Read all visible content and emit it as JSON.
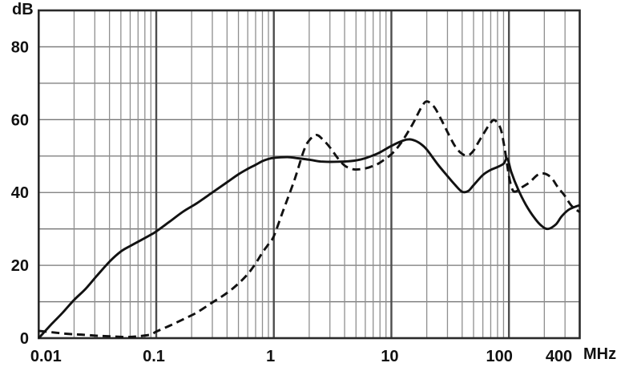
{
  "chart_data": {
    "type": "line",
    "title": "",
    "x_axis": {
      "scale": "log",
      "min": 0.01,
      "max": 400,
      "unit_label": "MHz",
      "tick_labels": [
        "0.01",
        "0.1",
        "1",
        "10",
        "100",
        "400"
      ],
      "tick_values": [
        0.01,
        0.1,
        1,
        10,
        100,
        400
      ]
    },
    "y_axis": {
      "scale": "linear",
      "min": 0,
      "max": 90,
      "unit_label": "dB",
      "tick_labels": [
        "80",
        "60",
        "40",
        "20",
        "0"
      ],
      "tick_values": [
        80,
        60,
        40,
        20,
        0
      ],
      "gridline_step": 10
    },
    "grid": {
      "horizontal_step": 10,
      "log_minor_verticals": true
    },
    "legend": "none",
    "series": [
      {
        "name": "solid",
        "style": "solid",
        "points": [
          [
            0.01,
            0
          ],
          [
            0.013,
            4
          ],
          [
            0.016,
            7
          ],
          [
            0.02,
            10.5
          ],
          [
            0.025,
            13.5
          ],
          [
            0.031,
            17
          ],
          [
            0.04,
            21
          ],
          [
            0.05,
            23.8
          ],
          [
            0.06,
            25.3
          ],
          [
            0.075,
            27
          ],
          [
            0.09,
            28.4
          ],
          [
            0.1,
            29.3
          ],
          [
            0.13,
            32
          ],
          [
            0.17,
            34.8
          ],
          [
            0.22,
            37
          ],
          [
            0.3,
            40
          ],
          [
            0.4,
            42.8
          ],
          [
            0.5,
            45
          ],
          [
            0.6,
            46.5
          ],
          [
            0.7,
            47.6
          ],
          [
            0.8,
            48.6
          ],
          [
            0.9,
            49.2
          ],
          [
            1,
            49.5
          ],
          [
            1.3,
            49.7
          ],
          [
            1.6,
            49.4
          ],
          [
            2,
            49
          ],
          [
            2.5,
            48.5
          ],
          [
            3,
            48.4
          ],
          [
            4,
            48.5
          ],
          [
            5,
            48.8
          ],
          [
            6,
            49.4
          ],
          [
            7,
            50.2
          ],
          [
            8,
            51
          ],
          [
            10,
            52.8
          ],
          [
            12,
            54
          ],
          [
            14,
            54.6
          ],
          [
            16,
            54.2
          ],
          [
            18,
            53.2
          ],
          [
            20,
            51.8
          ],
          [
            25,
            47.6
          ],
          [
            30,
            44.5
          ],
          [
            35,
            42
          ],
          [
            40,
            40.2
          ],
          [
            45,
            40.4
          ],
          [
            50,
            42
          ],
          [
            60,
            44.8
          ],
          [
            70,
            46.2
          ],
          [
            80,
            47
          ],
          [
            90,
            47.9
          ],
          [
            97,
            49.3
          ],
          [
            105,
            45.5
          ],
          [
            120,
            40.8
          ],
          [
            140,
            36.5
          ],
          [
            165,
            33
          ],
          [
            190,
            30.8
          ],
          [
            215,
            30
          ],
          [
            250,
            31.2
          ],
          [
            280,
            33.4
          ],
          [
            320,
            35.2
          ],
          [
            360,
            36
          ],
          [
            400,
            36.5
          ]
        ]
      },
      {
        "name": "dashed",
        "style": "dashed",
        "points": [
          [
            0.01,
            2
          ],
          [
            0.013,
            1.6
          ],
          [
            0.017,
            1.2
          ],
          [
            0.022,
            1
          ],
          [
            0.03,
            0.7
          ],
          [
            0.04,
            0.5
          ],
          [
            0.055,
            0.3
          ],
          [
            0.07,
            0.5
          ],
          [
            0.09,
            1
          ],
          [
            0.1,
            1.8
          ],
          [
            0.13,
            3.4
          ],
          [
            0.17,
            5.2
          ],
          [
            0.22,
            7
          ],
          [
            0.3,
            9.8
          ],
          [
            0.4,
            12.4
          ],
          [
            0.5,
            15
          ],
          [
            0.6,
            17.6
          ],
          [
            0.7,
            20.5
          ],
          [
            0.8,
            23.5
          ],
          [
            0.9,
            25.8
          ],
          [
            1,
            28
          ],
          [
            1.2,
            35
          ],
          [
            1.5,
            43.5
          ],
          [
            1.8,
            51.5
          ],
          [
            2,
            54.3
          ],
          [
            2.3,
            55.8
          ],
          [
            2.6,
            54.6
          ],
          [
            3,
            52.4
          ],
          [
            3.5,
            49.4
          ],
          [
            4,
            47.4
          ],
          [
            4.5,
            46.6
          ],
          [
            5,
            46.3
          ],
          [
            6,
            46.6
          ],
          [
            7,
            47.3
          ],
          [
            8,
            48.2
          ],
          [
            10,
            50.5
          ],
          [
            12,
            53.5
          ],
          [
            15,
            58.5
          ],
          [
            18,
            63.4
          ],
          [
            20,
            65
          ],
          [
            23,
            63.6
          ],
          [
            26,
            60.6
          ],
          [
            30,
            56.6
          ],
          [
            35,
            52.6
          ],
          [
            40,
            50.6
          ],
          [
            45,
            50.2
          ],
          [
            50,
            51.5
          ],
          [
            55,
            53.8
          ],
          [
            60,
            55.8
          ],
          [
            70,
            59.2
          ],
          [
            76,
            59.8
          ],
          [
            85,
            57.5
          ],
          [
            92,
            52
          ],
          [
            100,
            44.5
          ],
          [
            107,
            40.8
          ],
          [
            115,
            40.3
          ],
          [
            130,
            41.5
          ],
          [
            150,
            42.8
          ],
          [
            175,
            44.8
          ],
          [
            200,
            45.2
          ],
          [
            230,
            44
          ],
          [
            260,
            41.5
          ],
          [
            300,
            39
          ],
          [
            340,
            36.4
          ],
          [
            400,
            34.6
          ]
        ]
      }
    ],
    "colors": {
      "curve": "#121212",
      "grid_minor": "#8f8f8f",
      "grid_horizontal": "#767676",
      "grid_major": "#4d4d4d",
      "frame": "#2a2a2a",
      "background": "#ffffff",
      "text": "#111111"
    }
  }
}
